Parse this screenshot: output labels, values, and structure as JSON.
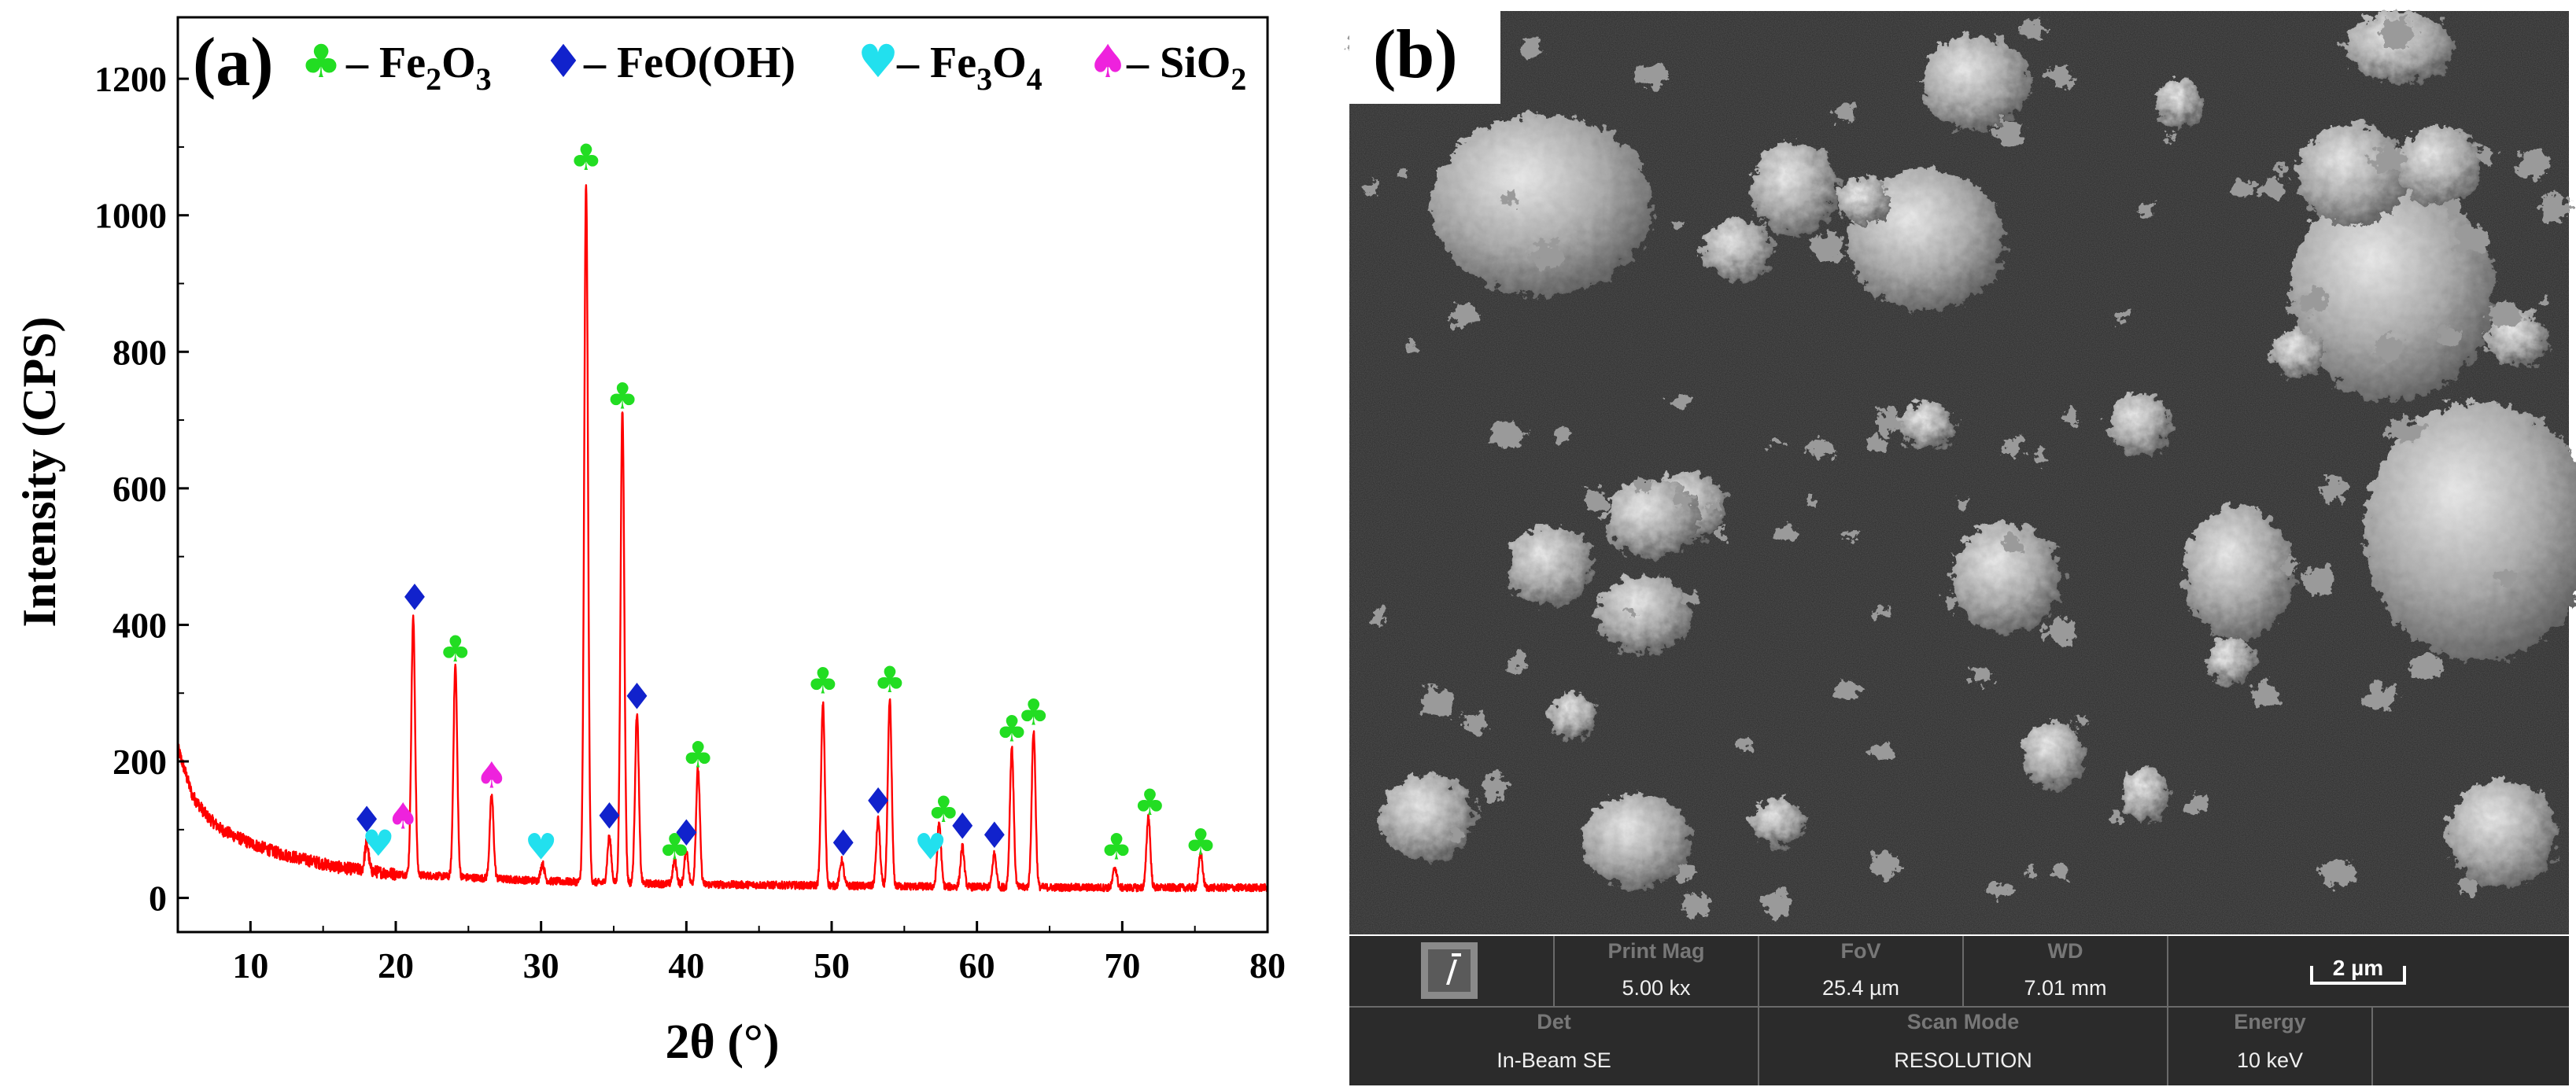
{
  "panel_a_label": "(a)",
  "panel_b_label": "(b)",
  "legend": [
    {
      "glyph": "♣",
      "color": "#22dd22",
      "prefix": "– Fe",
      "sub1": "2",
      "mid": "O",
      "sub2": "3"
    },
    {
      "glyph": "♦",
      "color": "#1122cc",
      "prefix": "– FeO(OH)",
      "sub1": "",
      "mid": "",
      "sub2": ""
    },
    {
      "glyph": "♥",
      "color": "#22e0ee",
      "prefix": "– Fe",
      "sub1": "3",
      "mid": "O",
      "sub2": "4"
    },
    {
      "glyph": "♠",
      "color": "#ee22dd",
      "prefix": "– SiO",
      "sub1": "2",
      "mid": "",
      "sub2": ""
    }
  ],
  "chart_data": {
    "type": "line",
    "xlabel": "2θ (°)",
    "ylabel": "Intensity (CPS)",
    "xlim": [
      5,
      80
    ],
    "ylim": [
      -50,
      1290
    ],
    "xticks": [
      10,
      20,
      30,
      40,
      50,
      60,
      70,
      80
    ],
    "yticks": [
      0,
      200,
      400,
      600,
      800,
      1000,
      1200
    ],
    "line_color": "#ff0000",
    "baseline": [
      [
        5,
        220
      ],
      [
        6,
        150
      ],
      [
        7,
        120
      ],
      [
        8,
        100
      ],
      [
        10,
        80
      ],
      [
        12,
        65
      ],
      [
        14,
        55
      ],
      [
        16,
        45
      ],
      [
        18,
        40
      ],
      [
        20,
        35
      ],
      [
        25,
        30
      ],
      [
        30,
        25
      ],
      [
        35,
        22
      ],
      [
        40,
        20
      ],
      [
        50,
        18
      ],
      [
        60,
        16
      ],
      [
        70,
        15
      ],
      [
        80,
        15
      ]
    ],
    "peaks": [
      {
        "x": 18.0,
        "y": 80
      },
      {
        "x": 21.2,
        "y": 410
      },
      {
        "x": 24.1,
        "y": 340
      },
      {
        "x": 26.6,
        "y": 150
      },
      {
        "x": 30.1,
        "y": 50
      },
      {
        "x": 33.1,
        "y": 1045
      },
      {
        "x": 34.7,
        "y": 90
      },
      {
        "x": 35.6,
        "y": 715
      },
      {
        "x": 36.6,
        "y": 270
      },
      {
        "x": 39.2,
        "y": 55
      },
      {
        "x": 40.0,
        "y": 70
      },
      {
        "x": 40.8,
        "y": 190
      },
      {
        "x": 49.4,
        "y": 285
      },
      {
        "x": 50.7,
        "y": 55
      },
      {
        "x": 53.2,
        "y": 115
      },
      {
        "x": 54.0,
        "y": 290
      },
      {
        "x": 57.4,
        "y": 110
      },
      {
        "x": 59.0,
        "y": 75
      },
      {
        "x": 61.2,
        "y": 65
      },
      {
        "x": 62.4,
        "y": 220
      },
      {
        "x": 63.9,
        "y": 245
      },
      {
        "x": 69.5,
        "y": 45
      },
      {
        "x": 71.8,
        "y": 120
      },
      {
        "x": 75.4,
        "y": 65
      }
    ],
    "markers": [
      {
        "x": 18.0,
        "y": 115,
        "phase": "FeO(OH)"
      },
      {
        "x": 18.8,
        "y": 80,
        "phase": "Fe3O4"
      },
      {
        "x": 20.5,
        "y": 120,
        "phase": "SiO2"
      },
      {
        "x": 21.3,
        "y": 440,
        "phase": "FeO(OH)"
      },
      {
        "x": 24.1,
        "y": 365,
        "phase": "Fe2O3"
      },
      {
        "x": 26.6,
        "y": 180,
        "phase": "SiO2"
      },
      {
        "x": 30.0,
        "y": 75,
        "phase": "Fe3O4"
      },
      {
        "x": 33.1,
        "y": 1085,
        "phase": "Fe2O3"
      },
      {
        "x": 34.7,
        "y": 120,
        "phase": "FeO(OH)"
      },
      {
        "x": 35.6,
        "y": 735,
        "phase": "Fe2O3"
      },
      {
        "x": 36.6,
        "y": 295,
        "phase": "FeO(OH)"
      },
      {
        "x": 39.2,
        "y": 75,
        "phase": "Fe2O3"
      },
      {
        "x": 40.0,
        "y": 95,
        "phase": "FeO(OH)"
      },
      {
        "x": 40.8,
        "y": 210,
        "phase": "Fe2O3"
      },
      {
        "x": 49.4,
        "y": 318,
        "phase": "Fe2O3"
      },
      {
        "x": 50.8,
        "y": 80,
        "phase": "FeO(OH)"
      },
      {
        "x": 53.2,
        "y": 142,
        "phase": "FeO(OH)"
      },
      {
        "x": 54.0,
        "y": 320,
        "phase": "Fe2O3"
      },
      {
        "x": 56.8,
        "y": 75,
        "phase": "Fe3O4"
      },
      {
        "x": 57.7,
        "y": 130,
        "phase": "Fe2O3"
      },
      {
        "x": 59.0,
        "y": 105,
        "phase": "FeO(OH)"
      },
      {
        "x": 61.2,
        "y": 92,
        "phase": "FeO(OH)"
      },
      {
        "x": 62.4,
        "y": 248,
        "phase": "Fe2O3"
      },
      {
        "x": 63.9,
        "y": 272,
        "phase": "Fe2O3"
      },
      {
        "x": 69.6,
        "y": 75,
        "phase": "Fe2O3"
      },
      {
        "x": 71.9,
        "y": 140,
        "phase": "Fe2O3"
      },
      {
        "x": 75.4,
        "y": 82,
        "phase": "Fe2O3"
      }
    ]
  },
  "sem_bar": {
    "logo_icon": "instrument-logo-icon",
    "print_mag_label": "Print Mag",
    "print_mag_value": "5.00 kx",
    "fov_label": "FoV",
    "fov_value": "25.4 µm",
    "wd_label": "WD",
    "wd_value": "7.01 mm",
    "scale_label": "2 µm",
    "det_label": "Det",
    "det_value": "In-Beam SE",
    "scan_mode_label": "Scan Mode",
    "scan_mode_value": "RESOLUTION",
    "energy_label": "Energy",
    "energy_value": "10 keV"
  }
}
